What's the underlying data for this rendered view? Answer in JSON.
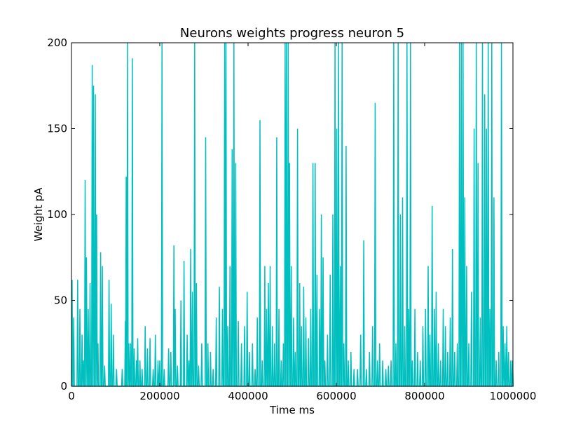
{
  "chart_data": {
    "type": "line",
    "title": "Neurons weights progress neuron 5",
    "xlabel": "Time ms",
    "ylabel": "Weight pA",
    "xlim": [
      0,
      1000000
    ],
    "ylim": [
      0,
      200
    ],
    "x_ticks": [
      "0",
      "200000",
      "400000",
      "600000",
      "800000",
      "1000000"
    ],
    "y_ticks": [
      "0",
      "50",
      "100",
      "150",
      "200"
    ],
    "grid": false,
    "legend": "none",
    "series": [
      {
        "color": "#00bfbf",
        "peaks": [
          [
            1500,
            62
          ],
          [
            5000,
            40
          ],
          [
            14000,
            62
          ],
          [
            19000,
            45
          ],
          [
            24000,
            30
          ],
          [
            27000,
            15
          ],
          [
            31000,
            120
          ],
          [
            34000,
            75
          ],
          [
            38000,
            45
          ],
          [
            42000,
            60
          ],
          [
            47000,
            187
          ],
          [
            50000,
            175
          ],
          [
            54000,
            170
          ],
          [
            57000,
            100
          ],
          [
            60000,
            25
          ],
          [
            66000,
            78
          ],
          [
            70000,
            70
          ],
          [
            75000,
            12
          ],
          [
            85000,
            62
          ],
          [
            90000,
            48
          ],
          [
            95000,
            30
          ],
          [
            102000,
            10
          ],
          [
            115000,
            10
          ],
          [
            122000,
            38
          ],
          [
            124000,
            122
          ],
          [
            127000,
            200
          ],
          [
            130000,
            25
          ],
          [
            134000,
            25
          ],
          [
            138000,
            191
          ],
          [
            142000,
            22
          ],
          [
            147000,
            15
          ],
          [
            150000,
            28
          ],
          [
            155000,
            15
          ],
          [
            160000,
            10
          ],
          [
            167000,
            35
          ],
          [
            172000,
            22
          ],
          [
            178000,
            28
          ],
          [
            185000,
            10
          ],
          [
            190000,
            30
          ],
          [
            196000,
            15
          ],
          [
            200000,
            15
          ],
          [
            205000,
            200
          ],
          [
            210000,
            10
          ],
          [
            220000,
            22
          ],
          [
            225000,
            20
          ],
          [
            232000,
            82
          ],
          [
            235000,
            45
          ],
          [
            240000,
            12
          ],
          [
            248000,
            50
          ],
          [
            255000,
            73
          ],
          [
            262000,
            30
          ],
          [
            266000,
            15
          ],
          [
            270000,
            80
          ],
          [
            274000,
            55
          ],
          [
            279000,
            200
          ],
          [
            283000,
            60
          ],
          [
            288000,
            12
          ],
          [
            295000,
            25
          ],
          [
            304000,
            145
          ],
          [
            309000,
            25
          ],
          [
            315000,
            20
          ],
          [
            321000,
            10
          ],
          [
            328000,
            40
          ],
          [
            335000,
            58
          ],
          [
            342000,
            45
          ],
          [
            347000,
            200
          ],
          [
            350000,
            200
          ],
          [
            354000,
            35
          ],
          [
            359000,
            70
          ],
          [
            364000,
            138
          ],
          [
            368000,
            200
          ],
          [
            372000,
            130
          ],
          [
            378000,
            38
          ],
          [
            385000,
            25
          ],
          [
            392000,
            35
          ],
          [
            398000,
            55
          ],
          [
            403000,
            20
          ],
          [
            410000,
            25
          ],
          [
            416000,
            10
          ],
          [
            421000,
            40
          ],
          [
            427000,
            155
          ],
          [
            432000,
            15
          ],
          [
            438000,
            70
          ],
          [
            442000,
            45
          ],
          [
            446000,
            60
          ],
          [
            450000,
            70
          ],
          [
            455000,
            35
          ],
          [
            460000,
            25
          ],
          [
            465000,
            145
          ],
          [
            470000,
            45
          ],
          [
            475000,
            15
          ],
          [
            480000,
            25
          ],
          [
            484000,
            200
          ],
          [
            487000,
            200
          ],
          [
            491000,
            200
          ],
          [
            494000,
            130
          ],
          [
            498000,
            70
          ],
          [
            503000,
            40
          ],
          [
            507000,
            20
          ],
          [
            512000,
            150
          ],
          [
            517000,
            60
          ],
          [
            521000,
            35
          ],
          [
            526000,
            58
          ],
          [
            531000,
            40
          ],
          [
            537000,
            28
          ],
          [
            542000,
            45
          ],
          [
            547000,
            130
          ],
          [
            552000,
            130
          ],
          [
            556000,
            65
          ],
          [
            562000,
            45
          ],
          [
            566000,
            100
          ],
          [
            570000,
            75
          ],
          [
            574000,
            15
          ],
          [
            580000,
            30
          ],
          [
            586000,
            65
          ],
          [
            592000,
            100
          ],
          [
            597000,
            200
          ],
          [
            601000,
            150
          ],
          [
            605000,
            200
          ],
          [
            609000,
            70
          ],
          [
            613000,
            200
          ],
          [
            617000,
            25
          ],
          [
            622000,
            140
          ],
          [
            627000,
            15
          ],
          [
            633000,
            20
          ],
          [
            640000,
            10
          ],
          [
            648000,
            10
          ],
          [
            655000,
            30
          ],
          [
            662000,
            85
          ],
          [
            668000,
            10
          ],
          [
            675000,
            20
          ],
          [
            682000,
            35
          ],
          [
            688000,
            165
          ],
          [
            693000,
            15
          ],
          [
            698000,
            25
          ],
          [
            705000,
            15
          ],
          [
            712000,
            10
          ],
          [
            718000,
            12
          ],
          [
            724000,
            15
          ],
          [
            730000,
            200
          ],
          [
            735000,
            25
          ],
          [
            740000,
            200
          ],
          [
            745000,
            100
          ],
          [
            750000,
            110
          ],
          [
            755000,
            35
          ],
          [
            760000,
            200
          ],
          [
            764000,
            45
          ],
          [
            768000,
            200
          ],
          [
            772000,
            15
          ],
          [
            778000,
            45
          ],
          [
            784000,
            20
          ],
          [
            790000,
            15
          ],
          [
            796000,
            35
          ],
          [
            802000,
            45
          ],
          [
            808000,
            70
          ],
          [
            812000,
            30
          ],
          [
            817000,
            105
          ],
          [
            822000,
            45
          ],
          [
            826000,
            55
          ],
          [
            831000,
            25
          ],
          [
            836000,
            15
          ],
          [
            842000,
            45
          ],
          [
            847000,
            35
          ],
          [
            852000,
            20
          ],
          [
            858000,
            40
          ],
          [
            863000,
            80
          ],
          [
            868000,
            20
          ],
          [
            874000,
            25
          ],
          [
            879000,
            200
          ],
          [
            883000,
            200
          ],
          [
            887000,
            200
          ],
          [
            891000,
            110
          ],
          [
            895000,
            70
          ],
          [
            900000,
            25
          ],
          [
            906000,
            55
          ],
          [
            912000,
            150
          ],
          [
            917000,
            200
          ],
          [
            921000,
            130
          ],
          [
            926000,
            40
          ],
          [
            931000,
            200
          ],
          [
            936000,
            170
          ],
          [
            940000,
            150
          ],
          [
            944000,
            200
          ],
          [
            948000,
            45
          ],
          [
            952000,
            200
          ],
          [
            957000,
            110
          ],
          [
            962000,
            15
          ],
          [
            968000,
            20
          ],
          [
            974000,
            200
          ],
          [
            978000,
            35
          ],
          [
            982000,
            25
          ],
          [
            986000,
            35
          ],
          [
            990000,
            20
          ],
          [
            995000,
            15
          ],
          [
            999000,
            15
          ]
        ]
      }
    ]
  }
}
